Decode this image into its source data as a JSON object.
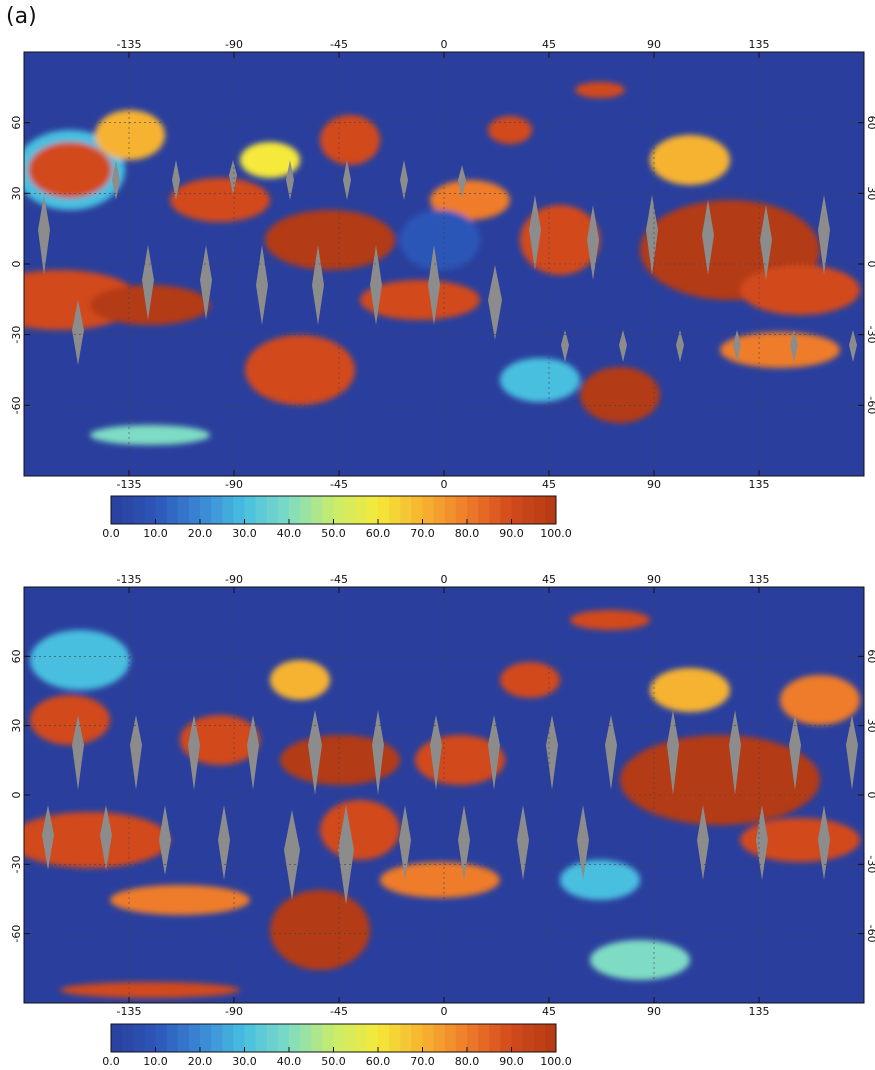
{
  "panel_label": "(a)",
  "colorbar": {
    "labels": [
      "0.0",
      "10.0",
      "20.0",
      "30.0",
      "40.0",
      "50.0",
      "60.0",
      "70.0",
      "80.0",
      "90.0",
      "100.0"
    ],
    "colors": [
      "#2a3f9d",
      "#2c56b8",
      "#3a86d4",
      "#48bfe0",
      "#7fdcc4",
      "#c8ec6a",
      "#f5e93a",
      "#f6b330",
      "#ee7b2a",
      "#d24a1c",
      "#b33a14"
    ]
  },
  "maps": [
    {
      "name": "top-map",
      "lon_ticks": [
        "-135",
        "-90",
        "-45",
        "0",
        "45",
        "90",
        "135"
      ],
      "lat_ticks": [
        "60",
        "30",
        "0",
        "-30",
        "-60"
      ]
    },
    {
      "name": "bottom-map",
      "lon_ticks": [
        "-135",
        "-90",
        "-45",
        "0",
        "45",
        "90",
        "135"
      ],
      "lat_ticks": [
        "60",
        "30",
        "0",
        "-30",
        "-60"
      ]
    }
  ],
  "colors": {
    "ocean_base": "#2a3f9d",
    "missing_swath": "#8c8c8c"
  }
}
